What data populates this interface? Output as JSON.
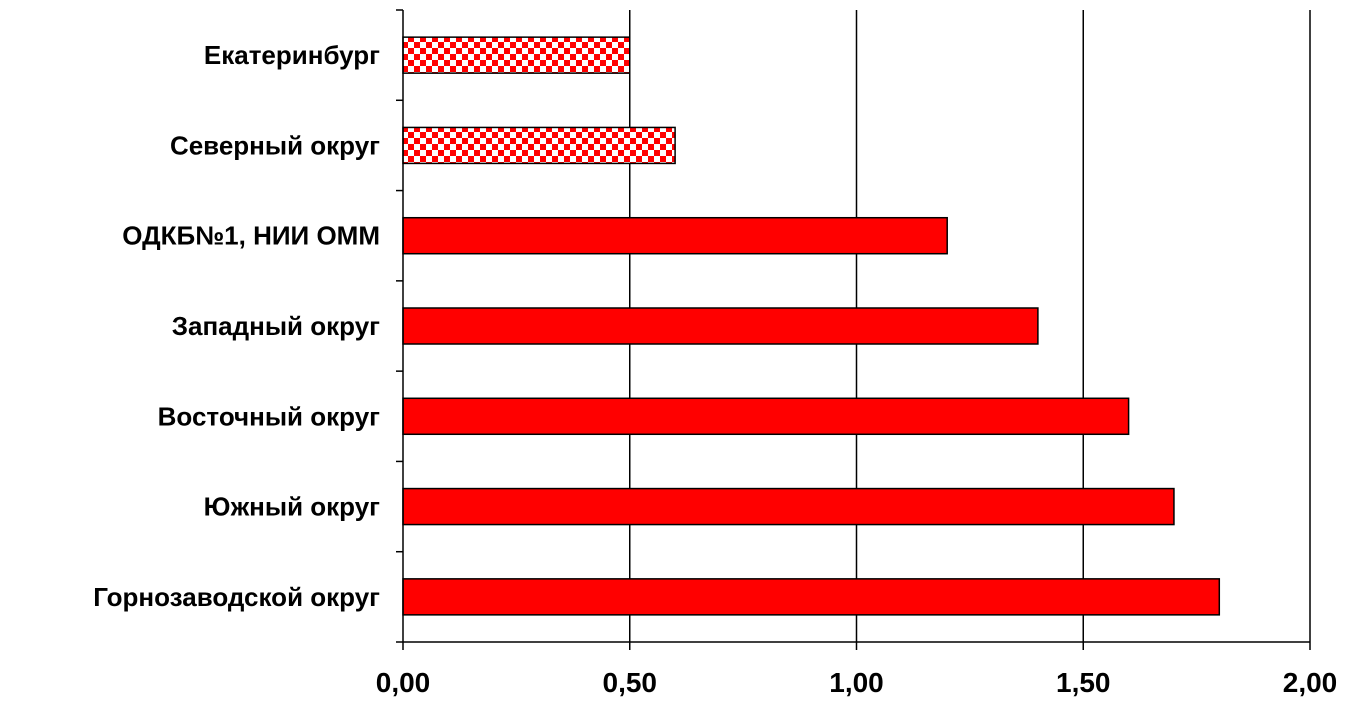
{
  "chart_data": {
    "type": "bar",
    "orientation": "horizontal",
    "title": "",
    "xlabel": "",
    "ylabel": "",
    "categories": [
      "Екатеринбург",
      "Северный округ",
      "ОДКБ№1, НИИ ОММ",
      "Западный округ",
      "Восточный округ",
      "Южный округ",
      "Горнозаводской округ"
    ],
    "values": [
      0.5,
      0.6,
      1.2,
      1.4,
      1.6,
      1.7,
      1.8
    ],
    "fills": [
      "checkered",
      "checkered",
      "solid",
      "solid",
      "solid",
      "solid",
      "solid"
    ],
    "xlim": [
      0,
      2
    ],
    "xticks": [
      "0,00",
      "0,50",
      "1,00",
      "1,50",
      "2,00"
    ],
    "xtick_values": [
      0,
      0.5,
      1,
      1.5,
      2
    ],
    "grid": "vertical",
    "legend": "none",
    "colors": {
      "bar": "#ff0000",
      "checker_light": "#ffffff",
      "outline": "#000000",
      "grid": "#000000"
    }
  }
}
